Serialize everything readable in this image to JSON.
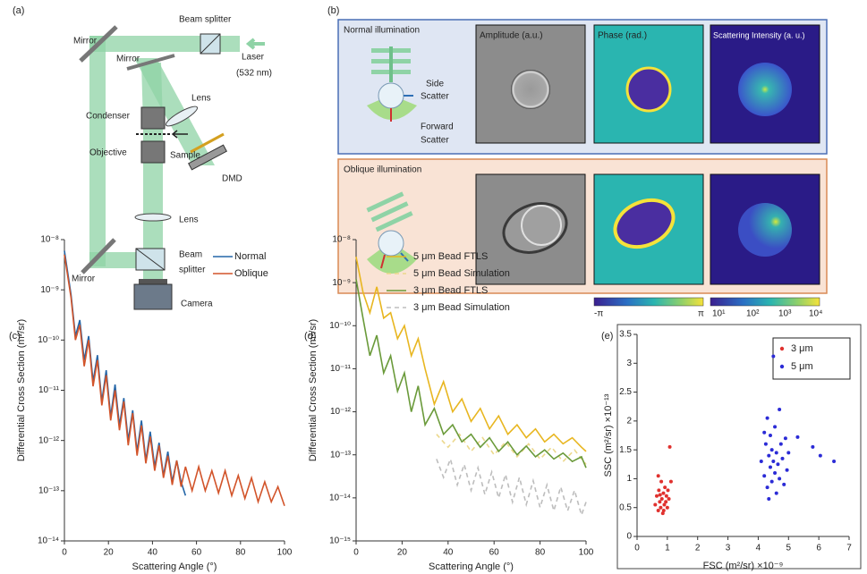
{
  "panel_labels": [
    "(a)",
    "(b)",
    "(c)",
    "(d)",
    "(e)"
  ],
  "panel_a": {
    "mirror_top_left": "Mirror",
    "beam_splitter_top": "Beam splitter",
    "laser": "Laser",
    "wavelength": "(532 nm)",
    "mirror_inner": "Mirror",
    "lens_upper": "Lens",
    "condenser": "Condenser",
    "objective": "Objective",
    "sample": "Sample",
    "dmd": "DMD",
    "lens_lower": "Lens",
    "beam_splitter_bottom_1": "Beam",
    "beam_splitter_bottom_2": "splitter",
    "mirror_bottom": "Mirror",
    "camera": "Camera"
  },
  "panel_b": {
    "normal_title": "Normal illumination",
    "side_1": "Side",
    "side_2": "Scatter",
    "forward_1": "Forward",
    "forward_2": "Scatter",
    "amplitude": "Amplitude (a.u.)",
    "phase": "Phase (rad.)",
    "scattering": "Scattering Intensity (a. u.)",
    "oblique_title": "Oblique illumination",
    "phase_scale": [
      "-π",
      "π"
    ],
    "intensity_scale": [
      "10¹",
      "10²",
      "10³",
      "10⁴"
    ]
  },
  "chart_data": [
    {
      "type": "line",
      "xlabel": "Scattering Angle (°)",
      "ylabel": "Differential Cross Section (m²/sr)",
      "yscale": "log",
      "legend": "upper right",
      "xlim": [
        0,
        100
      ],
      "xticks": [
        0,
        20,
        40,
        60,
        80,
        100
      ],
      "ylim": [
        1e-14,
        1e-08
      ],
      "yticks": [
        {
          "value": 1e-08,
          "label": "10⁻⁸"
        },
        {
          "value": 1e-09,
          "label": "10⁻⁹"
        },
        {
          "value": 1e-10,
          "label": "10⁻¹⁰"
        },
        {
          "value": 1e-11,
          "label": "10⁻¹¹"
        },
        {
          "value": 1e-12,
          "label": "10⁻¹²"
        },
        {
          "value": 1e-13,
          "label": "10⁻¹³"
        },
        {
          "value": 1e-14,
          "label": "10⁻¹⁴"
        }
      ],
      "series": [
        {
          "name": "Normal",
          "color": "#2466a8",
          "x": [
            0,
            3,
            5,
            7,
            9,
            11,
            13,
            15,
            17,
            19,
            21,
            23,
            25,
            27,
            29,
            31,
            33,
            35,
            37,
            39,
            41,
            43,
            45,
            47,
            49,
            51,
            53,
            55
          ],
          "values": [
            6e-09,
            8e-10,
            1.2e-10,
            2.5e-10,
            4e-11,
            1.2e-10,
            1.5e-11,
            5e-11,
            6e-12,
            2.5e-11,
            3e-12,
            1.3e-11,
            2e-12,
            7e-12,
            1e-12,
            4e-12,
            6e-13,
            2.5e-12,
            4e-13,
            1.5e-12,
            3e-13,
            9e-13,
            2e-13,
            6e-13,
            1.5e-13,
            4e-13,
            1.5e-13,
            8e-14
          ]
        },
        {
          "name": "Oblique",
          "color": "#d2542a",
          "x": [
            0,
            3,
            5,
            7,
            9,
            11,
            13,
            15,
            17,
            19,
            21,
            23,
            25,
            27,
            29,
            31,
            33,
            35,
            37,
            39,
            41,
            43,
            45,
            47,
            49,
            51,
            53,
            55,
            58,
            61,
            64,
            67,
            70,
            73,
            76,
            79,
            82,
            85,
            88,
            91,
            94,
            97,
            100
          ],
          "values": [
            5e-09,
            7e-10,
            1e-10,
            2e-10,
            3e-11,
            1e-10,
            1.2e-11,
            4e-11,
            5e-12,
            2e-11,
            2.5e-12,
            1e-11,
            1.6e-12,
            6e-12,
            8e-13,
            3.5e-12,
            5e-13,
            2e-12,
            3.5e-13,
            1.2e-12,
            2.5e-13,
            8e-13,
            1.8e-13,
            5e-13,
            1.3e-13,
            4e-13,
            1.2e-13,
            3e-13,
            1e-13,
            3e-13,
            1e-13,
            2.5e-13,
            9e-14,
            2.5e-13,
            8e-14,
            2e-13,
            7e-14,
            1.8e-13,
            6e-14,
            1.5e-13,
            6e-14,
            1.2e-13,
            5e-14
          ]
        }
      ]
    },
    {
      "type": "line",
      "xlabel": "Scattering Angle (°)",
      "ylabel": "Differential Cross Section (m²/sr)",
      "yscale": "log",
      "legend": "upper right",
      "xlim": [
        0,
        100
      ],
      "xticks": [
        0,
        20,
        40,
        60,
        80,
        100
      ],
      "ylim": [
        1e-15,
        1e-08
      ],
      "yticks": [
        {
          "value": 1e-08,
          "label": "10⁻⁸"
        },
        {
          "value": 1e-09,
          "label": "10⁻⁹"
        },
        {
          "value": 1e-10,
          "label": "10⁻¹⁰"
        },
        {
          "value": 1e-11,
          "label": "10⁻¹¹"
        },
        {
          "value": 1e-12,
          "label": "10⁻¹²"
        },
        {
          "value": 1e-13,
          "label": "10⁻¹³"
        },
        {
          "value": 1e-14,
          "label": "10⁻¹⁴"
        },
        {
          "value": 1e-15,
          "label": "10⁻¹⁵"
        }
      ],
      "series": [
        {
          "name": "5 μm Bead FTLS",
          "color": "#e8b620",
          "dash": false,
          "x": [
            0,
            3,
            6,
            9,
            12,
            15,
            18,
            21,
            24,
            27,
            30,
            34,
            38,
            42,
            46,
            50,
            54,
            58,
            62,
            66,
            70,
            74,
            78,
            82,
            86,
            90,
            94,
            98,
            100
          ],
          "values": [
            4e-09,
            6e-10,
            2e-10,
            8e-10,
            1.5e-10,
            2e-10,
            5e-11,
            1e-10,
            2e-11,
            5e-11,
            1e-11,
            1.5e-12,
            5e-12,
            1e-12,
            2e-12,
            6e-13,
            1.2e-12,
            4e-13,
            8e-13,
            3e-13,
            5e-13,
            2.5e-13,
            4e-13,
            2e-13,
            3e-13,
            1.8e-13,
            2.5e-13,
            1.5e-13,
            1.2e-13
          ]
        },
        {
          "name": "5 μm Bead Simulation",
          "color": "#ecd88c",
          "dash": true,
          "x": [
            35,
            40,
            45,
            50,
            55,
            60,
            65,
            70,
            75,
            80,
            85,
            90,
            95,
            100
          ],
          "values": [
            3e-13,
            1.5e-13,
            3e-13,
            1.2e-13,
            2.5e-13,
            1e-13,
            2e-13,
            9e-14,
            1.8e-13,
            8e-14,
            1.5e-13,
            7e-14,
            1.3e-13,
            6e-14
          ]
        },
        {
          "name": "3 μm Bead FTLS",
          "color": "#6a9a3a",
          "dash": false,
          "x": [
            0,
            3,
            6,
            9,
            12,
            15,
            18,
            21,
            24,
            27,
            30,
            34,
            38,
            42,
            46,
            50,
            54,
            58,
            62,
            66,
            70,
            74,
            78,
            82,
            86,
            90,
            94,
            98,
            100
          ],
          "values": [
            1.2e-09,
            1.5e-10,
            2e-11,
            6e-11,
            8e-12,
            2e-11,
            3e-12,
            8e-12,
            1e-12,
            4e-12,
            5e-13,
            1.2e-12,
            3e-13,
            5e-13,
            2e-13,
            3e-13,
            1.5e-13,
            2.5e-13,
            1.2e-13,
            2e-13,
            1e-13,
            1.6e-13,
            9e-14,
            1.3e-13,
            8e-14,
            1.1e-13,
            7e-14,
            9e-14,
            5e-14
          ]
        },
        {
          "name": "3 μm Bead Simulation",
          "color": "#bdbdbd",
          "dash": true,
          "x": [
            35,
            38,
            41,
            44,
            47,
            50,
            53,
            56,
            59,
            62,
            65,
            68,
            71,
            74,
            77,
            80,
            83,
            86,
            89,
            92,
            95,
            98,
            100
          ],
          "values": [
            8e-14,
            3e-14,
            8e-14,
            2e-14,
            6e-14,
            1.5e-14,
            5e-14,
            1.2e-14,
            4e-14,
            1e-14,
            3.5e-14,
            8e-15,
            3e-14,
            7e-15,
            2.5e-14,
            6e-15,
            2e-14,
            5e-15,
            1.8e-14,
            5e-15,
            1.5e-14,
            4e-15,
            8e-15
          ]
        }
      ]
    },
    {
      "type": "scatter",
      "xlabel": "FSC (m²/sr) ×10⁻⁹",
      "ylabel": "SSC (m²/sr) ×10⁻¹³",
      "legend": "upper right",
      "xlim": [
        0,
        7
      ],
      "xticks": [
        0,
        1,
        2,
        3,
        4,
        5,
        6,
        7
      ],
      "ylim": [
        0,
        3.5
      ],
      "yticks": [
        0,
        0.5,
        1,
        1.5,
        2,
        2.5,
        3,
        3.5
      ],
      "series": [
        {
          "name": "3 μm",
          "color": "#e0312e",
          "x": [
            0.6,
            0.65,
            0.7,
            0.72,
            0.75,
            0.78,
            0.8,
            0.82,
            0.85,
            0.87,
            0.9,
            0.92,
            0.95,
            0.97,
            1.0,
            1.02,
            1.05,
            1.08,
            0.7,
            1.12,
            0.88,
            0.76
          ],
          "values": [
            0.55,
            0.7,
            0.45,
            0.8,
            0.6,
            0.5,
            0.95,
            0.65,
            0.4,
            0.75,
            0.55,
            0.85,
            0.6,
            0.7,
            0.5,
            0.8,
            0.65,
            1.55,
            1.05,
            0.95,
            0.45,
            0.72
          ]
        },
        {
          "name": "5 μm",
          "color": "#2b2bd6",
          "x": [
            4.1,
            4.2,
            4.25,
            4.3,
            4.3,
            4.35,
            4.4,
            4.4,
            4.45,
            4.45,
            4.5,
            4.5,
            4.55,
            4.55,
            4.6,
            4.6,
            4.65,
            4.7,
            4.7,
            4.75,
            4.8,
            4.85,
            4.9,
            4.95,
            5.0,
            5.3,
            5.8,
            6.05,
            6.5,
            4.35,
            4.2
          ],
          "values": [
            1.3,
            1.05,
            1.6,
            0.85,
            2.05,
            1.4,
            1.2,
            1.75,
            0.95,
            1.5,
            3.12,
            1.3,
            1.1,
            1.9,
            0.75,
            1.45,
            1.25,
            2.2,
            1.0,
            1.6,
            1.35,
            0.9,
            1.7,
            1.15,
            1.45,
            1.72,
            1.55,
            1.4,
            1.3,
            0.65,
            1.8
          ]
        }
      ]
    }
  ]
}
